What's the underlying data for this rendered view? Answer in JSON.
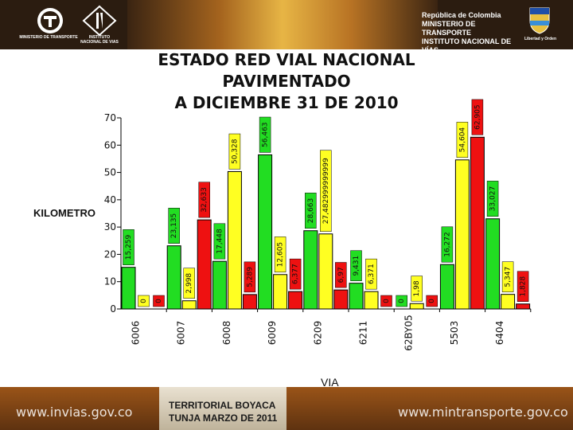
{
  "header": {
    "ministry_logo_label": "MINISTERIO DE TRANSPORTE",
    "institute_logo_label": "INSTITUTO NACIONAL DE VIAS",
    "right_title_lines": [
      "República de Colombia",
      "MINISTERIO DE TRANSPORTE",
      "INSTITUTO NACIONAL DE VÍAS"
    ],
    "motto": "Libertad y Orden"
  },
  "footer": {
    "left_url": "www.invias.gov.co",
    "right_url": "www.mintransporte.gov.co",
    "territorial": "TERRITORIAL BOYACA",
    "date": "TUNJA MARZO DE 2011"
  },
  "chart_data": {
    "type": "bar",
    "title_lines": [
      "ESTADO RED VIAL NACIONAL",
      "PAVIMENTADO",
      "A DICIEMBRE 31 DE 2010"
    ],
    "xlabel": "VIA",
    "ylabel": "KILOMETRO",
    "ylim": [
      0,
      70
    ],
    "yticks": [
      0,
      10,
      20,
      30,
      40,
      50,
      60,
      70
    ],
    "grid": false,
    "categories": [
      "6006",
      "6007",
      "6008",
      "6009",
      "6209",
      "6211",
      "62BY05",
      "5503",
      "6404"
    ],
    "series_colors": [
      "#22dd22",
      "#ffff22",
      "#ee1111"
    ],
    "values": [
      [
        15.259,
        0,
        0
      ],
      [
        23.135,
        2.998,
        32.633
      ],
      [
        17.448,
        50.328,
        5.289
      ],
      [
        56.463,
        12.605,
        6.377
      ],
      [
        28.663,
        27.482999999999,
        6.97
      ],
      [
        9.431,
        6.371,
        0
      ],
      [
        0,
        1.98,
        0
      ],
      [
        16.272,
        54.604,
        62.905
      ],
      [
        33.027,
        5.347,
        1.828
      ]
    ],
    "data_labels": [
      [
        "15,259",
        "0",
        "0"
      ],
      [
        "23,135",
        "2,998",
        "32,633"
      ],
      [
        "17,448",
        "50,328",
        "5,289"
      ],
      [
        "56,463",
        "12,605",
        "6,377"
      ],
      [
        "28,663",
        "27,482999999999",
        "6,97"
      ],
      [
        "9,431",
        "6,371",
        "0"
      ],
      [
        "0",
        "1,98",
        "0"
      ],
      [
        "16,272",
        "54,604",
        "62,905"
      ],
      [
        "33,027",
        "5,347",
        "1,828"
      ]
    ]
  }
}
